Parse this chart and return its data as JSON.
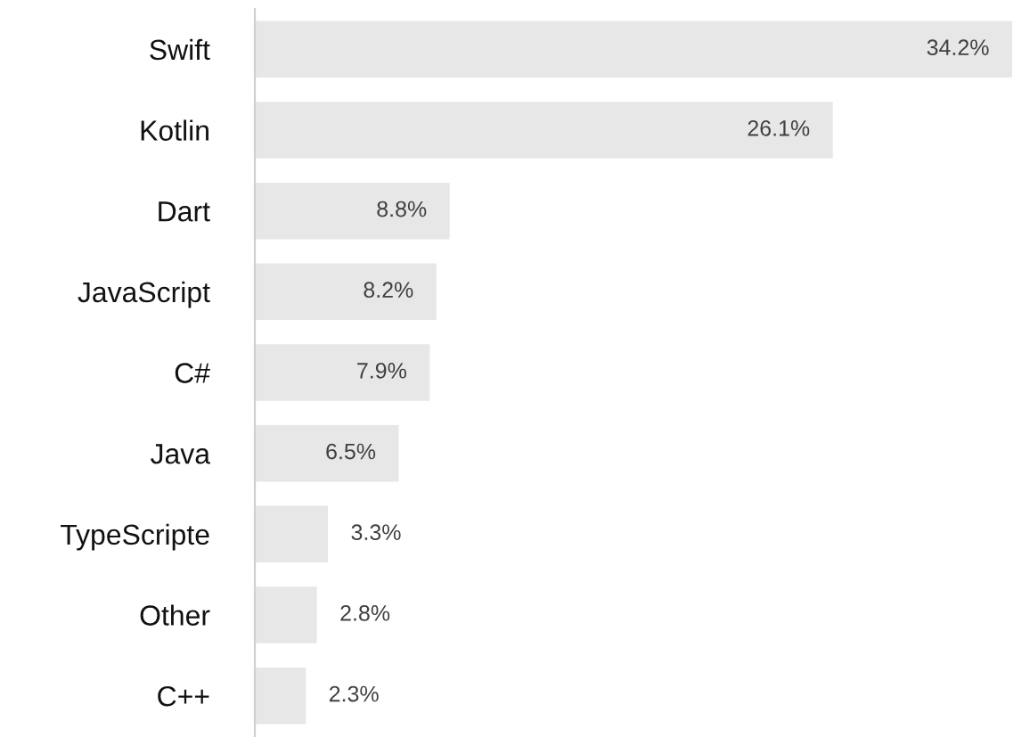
{
  "chart_data": {
    "type": "bar",
    "orientation": "horizontal",
    "categories": [
      "Swift",
      "Kotlin",
      "Dart",
      "JavaScript",
      "C#",
      "Java",
      "TypeScripte",
      "Other",
      "C++"
    ],
    "values": [
      34.2,
      26.1,
      8.8,
      8.2,
      7.9,
      6.5,
      3.3,
      2.8,
      2.3
    ],
    "value_labels": [
      "34.2%",
      "26.1%",
      "8.8%",
      "8.2%",
      "7.9%",
      "6.5%",
      "3.3%",
      "2.8%",
      "2.3%"
    ],
    "color": "#e7e7e7",
    "grid": false,
    "legend": false
  }
}
